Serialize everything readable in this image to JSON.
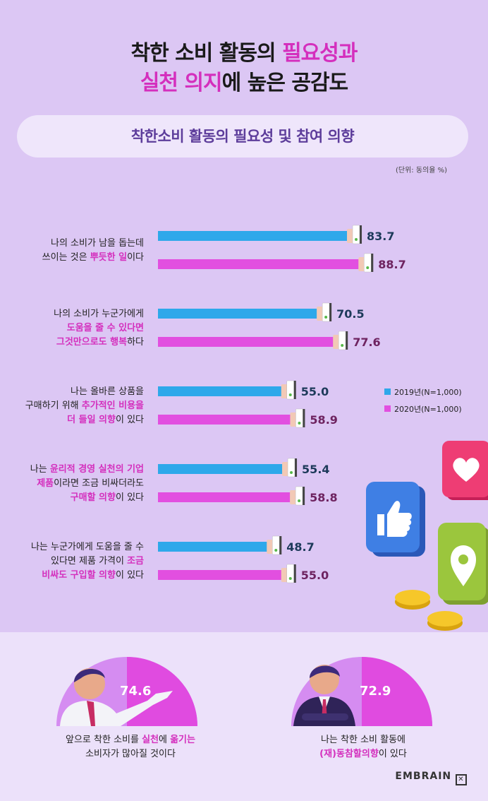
{
  "title": {
    "line1_a": "착한 소비 활동의 ",
    "line1_hl": "필요성과",
    "line2_hl": "실천 의지",
    "line2_b": "에 높은 공감도"
  },
  "subtitle": "착한소비 활동의 필요성 및 참여 의향",
  "unit_note": "(단위: 동의율 %)",
  "questions": [
    {
      "lines": [
        [
          {
            "t": "나의 소비가 남을 돕는데"
          }
        ],
        [
          {
            "t": "쓰이는 것은 "
          },
          {
            "t": "뿌듯한 일",
            "hl": true
          },
          {
            "t": "이다"
          }
        ]
      ]
    },
    {
      "lines": [
        [
          {
            "t": "나의 소비가 누군가에게"
          }
        ],
        [
          {
            "t": "도움을 줄 수 있다면",
            "hl": true
          }
        ],
        [
          {
            "t": "그것만으로도 ",
            "hl": true
          },
          {
            "t": "행복",
            "hl": true
          },
          {
            "t": "하다"
          }
        ]
      ]
    },
    {
      "lines": [
        [
          {
            "t": "나는 올바른 상품을"
          }
        ],
        [
          {
            "t": "구매하기 위해 "
          },
          {
            "t": "추가적인 비용을",
            "hl": true
          }
        ],
        [
          {
            "t": "더 들일 의향",
            "hl": true
          },
          {
            "t": "이 있다"
          }
        ]
      ]
    },
    {
      "lines": [
        [
          {
            "t": "나는 "
          },
          {
            "t": "윤리적 경영 실천의 기업",
            "hl": true
          }
        ],
        [
          {
            "t": "제품",
            "hl": true
          },
          {
            "t": "이라면 조금 비싸더라도"
          }
        ],
        [
          {
            "t": "구매할 의향",
            "hl": true
          },
          {
            "t": "이 있다"
          }
        ]
      ]
    },
    {
      "lines": [
        [
          {
            "t": "나는 누군가에게 도움을 줄 수"
          }
        ],
        [
          {
            "t": "있다면 제품 가격이 "
          },
          {
            "t": "조금",
            "hl": true
          }
        ],
        [
          {
            "t": "비싸도 구입할 의향",
            "hl": true
          },
          {
            "t": "이 있다"
          }
        ]
      ]
    }
  ],
  "legend": {
    "items": [
      {
        "label": "2019년(N=1,000)",
        "color": "#2ea8ea"
      },
      {
        "label": "2020년(N=1,000)",
        "color": "#e24fe0"
      }
    ]
  },
  "chart_data": {
    "type": "bar",
    "orientation": "horizontal",
    "categories": [
      "나의 소비가 남을 돕는데 쓰이는 것은 뿌듯한 일이다",
      "나의 소비가 누군가에게 도움을 줄 수 있다면 그것만으로도 행복하다",
      "나는 올바른 상품을 구매하기 위해 추가적인 비용을 더 들일 의향이 있다",
      "나는 윤리적 경영 실천의 기업 제품이라면 조금 비싸더라도 구매할 의향이 있다",
      "나는 누군가에게 도움을 줄 수 있다면 제품 가격이 조금 비싸도 구입할 의향이 있다"
    ],
    "series": [
      {
        "name": "2019년(N=1,000)",
        "color": "#2ea8ea",
        "values": [
          83.7,
          70.5,
          55.0,
          55.4,
          48.7
        ],
        "labels": [
          "83.7",
          "70.5",
          "55.0",
          "55.4",
          "48.7"
        ]
      },
      {
        "name": "2020년(N=1,000)",
        "color": "#e24fe0",
        "values": [
          88.7,
          77.6,
          58.9,
          58.8,
          55.0
        ],
        "labels": [
          "88.7",
          "77.6",
          "58.9",
          "58.8",
          "55.0"
        ]
      }
    ],
    "xlim": [
      0,
      100
    ],
    "label_colors": [
      "#1d3a5a",
      "#6e2360"
    ],
    "legend_position": "right"
  },
  "bottom": {
    "left": {
      "value": "74.6",
      "caption_l1_a": "앞으로 착한 소비를 ",
      "caption_l1_hl": "실천",
      "caption_l1_b": "에 ",
      "caption_l1_hl2": "옮기는",
      "caption_l2": "소비자가 많아질 것이다"
    },
    "right": {
      "value": "72.9",
      "caption_l1": "나는 착한 소비 활동에",
      "caption_l2_hl": "(재)동참할의향",
      "caption_l2_b": "이 있다"
    }
  },
  "logo": "EMBRAIN",
  "colors": {
    "bar_2019": "#2ea8ea",
    "bar_2020": "#e24fe0",
    "accent": "#d42fbd",
    "bg_top": "#dcc7f4",
    "bg_bottom": "#ece1fa"
  }
}
